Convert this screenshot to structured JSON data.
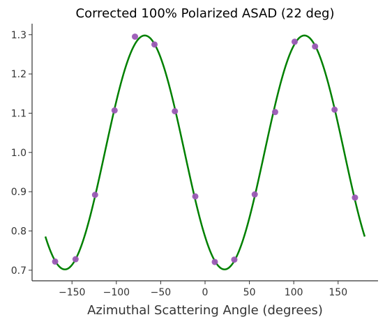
{
  "chart_data": {
    "type": "scatter",
    "title": "Corrected 100% Polarized ASAD (22 deg)",
    "xlabel": "Azimuthal Scattering Angle (degrees)",
    "ylabel": "",
    "xlim": [
      -195,
      195
    ],
    "ylim": [
      0.673,
      1.328
    ],
    "xticks": [
      -150,
      -100,
      -50,
      0,
      50,
      100,
      150
    ],
    "xtick_labels": [
      "−150",
      "−100",
      "−50",
      "0",
      "50",
      "100",
      "150"
    ],
    "yticks": [
      0.7,
      0.8,
      0.9,
      1.0,
      1.1,
      1.2,
      1.3
    ],
    "ytick_labels": [
      "0.7",
      "0.8",
      "0.9",
      "1.0",
      "1.1",
      "1.2",
      "1.3"
    ],
    "grid": false,
    "series": [
      {
        "kind": "scatter",
        "color": "#9b59b6",
        "x": [
          -169,
          -146,
          -124,
          -102,
          -79,
          -57,
          -34,
          -11,
          11,
          33,
          56,
          79,
          101,
          124,
          146,
          169
        ],
        "y": [
          0.722,
          0.728,
          0.892,
          1.107,
          1.295,
          1.275,
          1.105,
          0.888,
          0.721,
          0.727,
          0.893,
          1.103,
          1.282,
          1.27,
          1.109,
          0.885
        ]
      },
      {
        "kind": "line",
        "color": "#008000",
        "model": "1.0 - 0.298*cos(2*(phi - 22))",
        "x_range": [
          -180,
          180
        ],
        "mean": 1.0,
        "amplitude": 0.298,
        "phase_deg": 22
      }
    ]
  }
}
